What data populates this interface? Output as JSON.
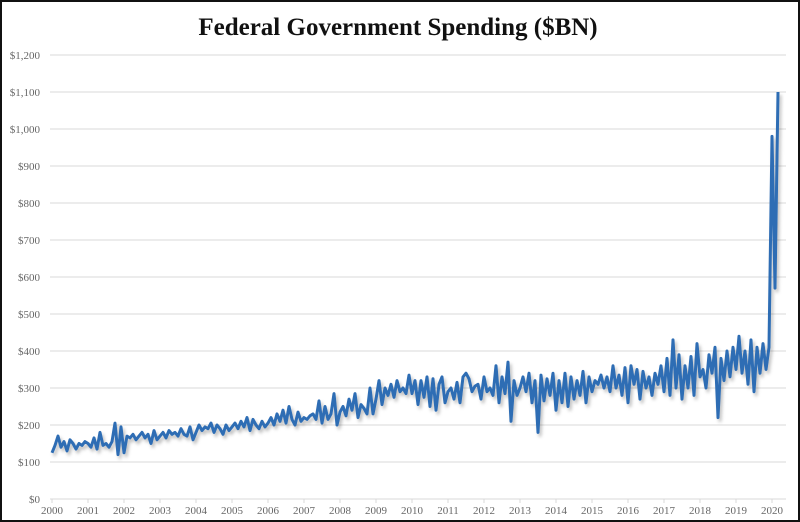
{
  "chart_data": {
    "type": "line",
    "title": "Federal Government Spending ($BN)",
    "xlabel": "",
    "ylabel": "",
    "ylim": [
      0,
      1200
    ],
    "yticks": [
      0,
      100,
      200,
      300,
      400,
      500,
      600,
      700,
      800,
      900,
      1000,
      1100,
      1200
    ],
    "ytick_labels": [
      "$0",
      "$100",
      "$200",
      "$300",
      "$400",
      "$500",
      "$600",
      "$700",
      "$800",
      "$900",
      "$1,000",
      "$1,100",
      "$1,200"
    ],
    "xtick_labels": [
      "2000",
      "2001",
      "2002",
      "2003",
      "2004",
      "2005",
      "2006",
      "2007",
      "2008",
      "2009",
      "2010",
      "2011",
      "2012",
      "2013",
      "2014",
      "2015",
      "2016",
      "2017",
      "2018",
      "2019",
      "2020"
    ],
    "x_start_year": 2000,
    "x_step": "monthly",
    "grid": true,
    "series": [
      {
        "name": "Federal Government Spending",
        "color": "#2e6db4",
        "values": [
          125,
          145,
          170,
          140,
          155,
          130,
          160,
          150,
          135,
          150,
          145,
          155,
          150,
          140,
          165,
          135,
          180,
          145,
          150,
          140,
          155,
          205,
          120,
          195,
          125,
          170,
          165,
          175,
          160,
          170,
          180,
          165,
          175,
          150,
          185,
          160,
          170,
          180,
          165,
          185,
          175,
          180,
          170,
          190,
          175,
          170,
          195,
          160,
          180,
          200,
          185,
          195,
          190,
          205,
          180,
          200,
          190,
          175,
          200,
          185,
          195,
          205,
          190,
          210,
          195,
          220,
          185,
          215,
          200,
          190,
          210,
          195,
          205,
          220,
          200,
          230,
          210,
          240,
          205,
          250,
          215,
          200,
          235,
          210,
          220,
          215,
          225,
          230,
          215,
          265,
          205,
          250,
          215,
          230,
          285,
          200,
          235,
          250,
          225,
          270,
          240,
          285,
          220,
          255,
          245,
          230,
          300,
          230,
          270,
          320,
          255,
          300,
          280,
          310,
          275,
          320,
          290,
          300,
          285,
          335,
          285,
          320,
          255,
          320,
          275,
          330,
          250,
          325,
          240,
          310,
          330,
          260,
          290,
          300,
          270,
          315,
          260,
          330,
          340,
          325,
          290,
          305,
          310,
          270,
          330,
          290,
          300,
          280,
          360,
          260,
          330,
          285,
          370,
          210,
          320,
          280,
          300,
          330,
          290,
          340,
          260,
          320,
          180,
          335,
          265,
          325,
          280,
          340,
          240,
          320,
          260,
          340,
          250,
          330,
          270,
          320,
          280,
          345,
          260,
          330,
          290,
          320,
          310,
          335,
          300,
          330,
          290,
          360,
          300,
          335,
          280,
          355,
          260,
          360,
          310,
          350,
          270,
          345,
          300,
          330,
          280,
          340,
          310,
          360,
          290,
          380,
          280,
          430,
          300,
          390,
          270,
          360,
          300,
          385,
          280,
          420,
          330,
          350,
          300,
          390,
          340,
          410,
          220,
          380,
          320,
          400,
          330,
          410,
          350,
          440,
          340,
          400,
          310,
          430,
          290,
          410,
          340,
          420,
          350,
          410,
          980,
          570,
          1100
        ]
      }
    ]
  }
}
